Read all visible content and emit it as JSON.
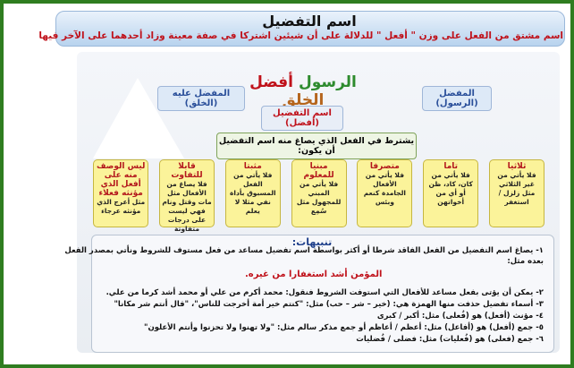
{
  "header": {
    "title": "اسم التفضيل",
    "subtitle": "اسم مشتق من الفعل على وزن \" أفعل \" للدلالة على أن شيئين اشتركا في صفة معينة وزاد أحدهما على الآخر فيها"
  },
  "example": {
    "words": [
      "الرسول",
      "أفضل",
      "الخلق"
    ],
    "tags": [
      "المفضل (الرسول)",
      "المفضل عليه (الخلق)",
      "اسم التفضيل (أفضل)"
    ]
  },
  "conditions": {
    "heading": "يشترط في الفعل الذي يصاغ منه اسم التفضيل أن يكون:",
    "items": [
      {
        "title": "ثلاثيا",
        "text": "فلا يأتي من غير الثلاثي مثل زلزل / استغفر"
      },
      {
        "title": "تاما",
        "text": "فلا يأتي من كان، كاد، ظن أو أي من أخواتهن"
      },
      {
        "title": "متصرفا",
        "text": "فلا يأتي من الأفعال الجامدة كنعم وبئس"
      },
      {
        "title": "مبنيا للمعلوم",
        "text": "فلا يأتي من المبني للمجهول مثل سُمِع"
      },
      {
        "title": "مثبتا",
        "text": "فلا يأتي من الفعل المسبوق بأداة نفي مثلا لا يعلم"
      },
      {
        "title": "قابلا للتفاوت",
        "text": "فلا يصاغ من الأفعال مثل مات وقتل ونام فهي ليست على درجات متفاوتة"
      },
      {
        "title": "ليس الوصف منه على أفعل الذي مؤنثه فعلاء",
        "text": "مثل أعرج الذي مؤنثه عرجاء"
      }
    ]
  },
  "notes": {
    "title": "تنبيهات:",
    "lines": [
      "١- يصاغ اسم التفضيل من الفعل الفاقد شرطا أو أكثر بواسطة اسم تفضيل مساعد من فعل مستوف للشروط ونأتي بمصدر الفعل",
      "بعده مثل:",
      "٢- يمكن أن يؤتى بفعل مساعد للأفعال التي استوفت الشروط فنقول: محمد أكرم من علي أو محمد أشد كرما من علي.",
      "٣- أسماء تفضيل حذفت منها الهمزة هي: (خير – شر – حب) مثل: \"كنتم خير أمة أخرجت للناس\"، \"قال أنتم شر مكانا\"",
      "٤- مؤنث (أفعل) هو (فُعلى) مثل: أكبر / كبرى",
      "٥- جمع (أفعل) هو (أفاعل) مثل: أعظم / أعاظم     أو جمع مذكر سالم مثل: \"ولا تهنوا ولا تحزنوا وأنتم الأعلون\"",
      "٦- جمع (فعلى) هو (فُعليات) مثل: فضلى / فُضليات"
    ],
    "example": "المؤمن أشد استغفارا من غيره."
  }
}
